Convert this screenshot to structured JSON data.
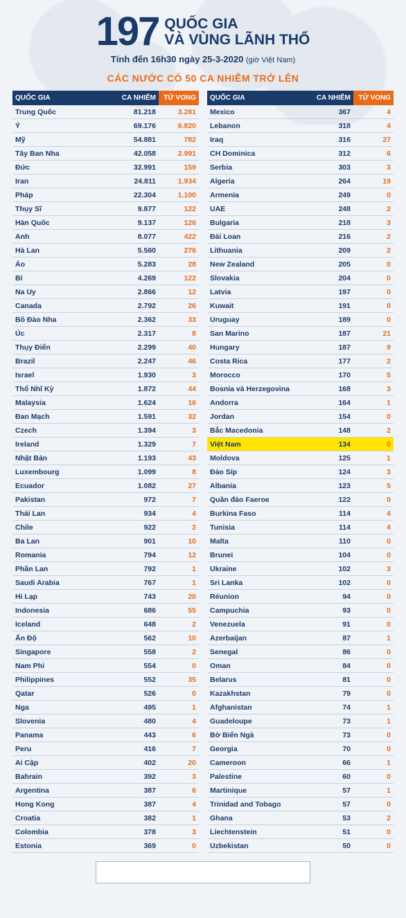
{
  "header": {
    "number": "197",
    "title_line1": "QUỐC GIA",
    "title_line2": "VÀ VÙNG LÃNH THỔ",
    "subtitle_prefix": "Tính đến 16h30 ngày 25-3-2020",
    "subtitle_tz": "(giờ Việt Nam)"
  },
  "section_title": "CÁC NƯỚC CÓ 50 CA NHIỄM TRỞ LÊN",
  "table": {
    "headers": {
      "country": "QUỐC GIA",
      "cases": "CA NHIỄM",
      "deaths": "TỬ VONG"
    },
    "header_bg": "#1a3a6a",
    "header_deaths_bg": "#e96b1a",
    "text_color": "#1a3a6a",
    "deaths_color": "#e96b1a",
    "border_color": "#c8d2de",
    "highlight_bg": "#ffe500"
  },
  "left_rows": [
    {
      "c": "Trung Quốc",
      "n": "81.218",
      "d": "3.281"
    },
    {
      "c": "Ý",
      "n": "69.176",
      "d": "6.820"
    },
    {
      "c": "Mỹ",
      "n": "54.881",
      "d": "782"
    },
    {
      "c": "Tây Ban Nha",
      "n": "42.058",
      "d": "2.991"
    },
    {
      "c": "Đức",
      "n": "32.991",
      "d": "159"
    },
    {
      "c": "Iran",
      "n": "24.811",
      "d": "1.934"
    },
    {
      "c": "Pháp",
      "n": "22.304",
      "d": "1.100"
    },
    {
      "c": "Thụy Sĩ",
      "n": "9.877",
      "d": "122"
    },
    {
      "c": "Hàn Quốc",
      "n": "9.137",
      "d": "126"
    },
    {
      "c": "Anh",
      "n": "8.077",
      "d": "422"
    },
    {
      "c": "Hà Lan",
      "n": "5.560",
      "d": "276"
    },
    {
      "c": "Áo",
      "n": "5.283",
      "d": "28"
    },
    {
      "c": "Bỉ",
      "n": "4.269",
      "d": "122"
    },
    {
      "c": "Na Uy",
      "n": "2.866",
      "d": "12"
    },
    {
      "c": "Canada",
      "n": "2.792",
      "d": "26"
    },
    {
      "c": "Bồ Đào Nha",
      "n": "2.362",
      "d": "33"
    },
    {
      "c": "Úc",
      "n": "2.317",
      "d": "8"
    },
    {
      "c": "Thụy Điển",
      "n": "2.299",
      "d": "40"
    },
    {
      "c": "Brazil",
      "n": "2.247",
      "d": "46"
    },
    {
      "c": "Israel",
      "n": "1.930",
      "d": "3"
    },
    {
      "c": "Thổ Nhĩ Kỳ",
      "n": "1.872",
      "d": "44"
    },
    {
      "c": "Malaysia",
      "n": "1.624",
      "d": "16"
    },
    {
      "c": "Đan Mạch",
      "n": "1.591",
      "d": "32"
    },
    {
      "c": "Czech",
      "n": "1.394",
      "d": "3"
    },
    {
      "c": "Ireland",
      "n": "1.329",
      "d": "7"
    },
    {
      "c": "Nhật Bản",
      "n": "1.193",
      "d": "43"
    },
    {
      "c": "Luxembourg",
      "n": "1.099",
      "d": "8"
    },
    {
      "c": "Ecuador",
      "n": "1.082",
      "d": "27"
    },
    {
      "c": "Pakistan",
      "n": "972",
      "d": "7"
    },
    {
      "c": "Thái Lan",
      "n": "934",
      "d": "4"
    },
    {
      "c": "Chile",
      "n": "922",
      "d": "2"
    },
    {
      "c": "Ba Lan",
      "n": "901",
      "d": "10"
    },
    {
      "c": "Romania",
      "n": "794",
      "d": "12"
    },
    {
      "c": "Phần Lan",
      "n": "792",
      "d": "1"
    },
    {
      "c": "Saudi Arabia",
      "n": "767",
      "d": "1"
    },
    {
      "c": "Hi Lạp",
      "n": "743",
      "d": "20"
    },
    {
      "c": "Indonesia",
      "n": "686",
      "d": "55"
    },
    {
      "c": "Iceland",
      "n": "648",
      "d": "2"
    },
    {
      "c": "Ấn Độ",
      "n": "562",
      "d": "10"
    },
    {
      "c": "Singapore",
      "n": "558",
      "d": "2"
    },
    {
      "c": "Nam Phi",
      "n": "554",
      "d": "0"
    },
    {
      "c": "Philippines",
      "n": "552",
      "d": "35"
    },
    {
      "c": "Qatar",
      "n": "526",
      "d": "0"
    },
    {
      "c": "Nga",
      "n": "495",
      "d": "1"
    },
    {
      "c": "Slovenia",
      "n": "480",
      "d": "4"
    },
    {
      "c": "Panama",
      "n": "443",
      "d": "6"
    },
    {
      "c": "Peru",
      "n": "416",
      "d": "7"
    },
    {
      "c": "Ai Cập",
      "n": "402",
      "d": "20"
    },
    {
      "c": "Bahrain",
      "n": "392",
      "d": "3"
    },
    {
      "c": "Argentina",
      "n": "387",
      "d": "6"
    },
    {
      "c": "Hong Kong",
      "n": "387",
      "d": "4"
    },
    {
      "c": "Croatia",
      "n": "382",
      "d": "1"
    },
    {
      "c": "Colombia",
      "n": "378",
      "d": "3"
    },
    {
      "c": "Estonia",
      "n": "369",
      "d": "0"
    }
  ],
  "right_rows": [
    {
      "c": "Mexico",
      "n": "367",
      "d": "4"
    },
    {
      "c": "Lebanon",
      "n": "318",
      "d": "4"
    },
    {
      "c": "Iraq",
      "n": "316",
      "d": "27"
    },
    {
      "c": "CH Dominica",
      "n": "312",
      "d": "6"
    },
    {
      "c": "Serbia",
      "n": "303",
      "d": "3"
    },
    {
      "c": "Algeria",
      "n": "264",
      "d": "19"
    },
    {
      "c": "Armenia",
      "n": "249",
      "d": "0"
    },
    {
      "c": "UAE",
      "n": "248",
      "d": "2"
    },
    {
      "c": "Bulgaria",
      "n": "218",
      "d": "3"
    },
    {
      "c": "Đài Loan",
      "n": "216",
      "d": "2"
    },
    {
      "c": "Lithuania",
      "n": "209",
      "d": "2"
    },
    {
      "c": "New Zealand",
      "n": "205",
      "d": "0"
    },
    {
      "c": "Slovakia",
      "n": "204",
      "d": "0"
    },
    {
      "c": "Latvia",
      "n": "197",
      "d": "0"
    },
    {
      "c": "Kuwait",
      "n": "191",
      "d": "0"
    },
    {
      "c": "Uruguay",
      "n": "189",
      "d": "0"
    },
    {
      "c": "San Marino",
      "n": "187",
      "d": "21"
    },
    {
      "c": "Hungary",
      "n": "187",
      "d": "9"
    },
    {
      "c": "Costa Rica",
      "n": "177",
      "d": "2"
    },
    {
      "c": "Morocco",
      "n": "170",
      "d": "5"
    },
    {
      "c": "Bosnia và Herzegovina",
      "n": "168",
      "d": "3"
    },
    {
      "c": "Andorra",
      "n": "164",
      "d": "1"
    },
    {
      "c": "Jordan",
      "n": "154",
      "d": "0"
    },
    {
      "c": "Bắc Macedonia",
      "n": "148",
      "d": "2"
    },
    {
      "c": "Việt Nam",
      "n": "134",
      "d": "0",
      "hl": true
    },
    {
      "c": "Moldova",
      "n": "125",
      "d": "1"
    },
    {
      "c": "Đảo Síp",
      "n": "124",
      "d": "3"
    },
    {
      "c": "Albania",
      "n": "123",
      "d": "5"
    },
    {
      "c": "Quần đảo Faeroe",
      "n": "122",
      "d": "0"
    },
    {
      "c": "Burkina Faso",
      "n": "114",
      "d": "4"
    },
    {
      "c": "Tunisia",
      "n": "114",
      "d": "4"
    },
    {
      "c": "Malta",
      "n": "110",
      "d": "0"
    },
    {
      "c": "Brunei",
      "n": "104",
      "d": "0"
    },
    {
      "c": "Ukraine",
      "n": "102",
      "d": "3"
    },
    {
      "c": "Sri Lanka",
      "n": "102",
      "d": "0"
    },
    {
      "c": "Réunion",
      "n": "94",
      "d": "0"
    },
    {
      "c": "Campuchia",
      "n": "93",
      "d": "0"
    },
    {
      "c": "Venezuela",
      "n": "91",
      "d": "0"
    },
    {
      "c": "Azerbaijan",
      "n": "87",
      "d": "1"
    },
    {
      "c": "Senegal",
      "n": "86",
      "d": "0"
    },
    {
      "c": "Oman",
      "n": "84",
      "d": "0"
    },
    {
      "c": "Belarus",
      "n": "81",
      "d": "0"
    },
    {
      "c": "Kazakhstan",
      "n": "79",
      "d": "0"
    },
    {
      "c": "Afghanistan",
      "n": "74",
      "d": "1"
    },
    {
      "c": "Guadeloupe",
      "n": "73",
      "d": "1"
    },
    {
      "c": "Bờ Biển Ngà",
      "n": "73",
      "d": "0"
    },
    {
      "c": "Georgia",
      "n": "70",
      "d": "0"
    },
    {
      "c": "Cameroon",
      "n": "66",
      "d": "1"
    },
    {
      "c": "Palestine",
      "n": "60",
      "d": "0"
    },
    {
      "c": "Martinique",
      "n": "57",
      "d": "1"
    },
    {
      "c": "Trinidad and Tobago",
      "n": "57",
      "d": "0"
    },
    {
      "c": "Ghana",
      "n": "53",
      "d": "2"
    },
    {
      "c": "Liechtenstein",
      "n": "51",
      "d": "0"
    },
    {
      "c": "Uzbekistan",
      "n": "50",
      "d": "0"
    }
  ]
}
